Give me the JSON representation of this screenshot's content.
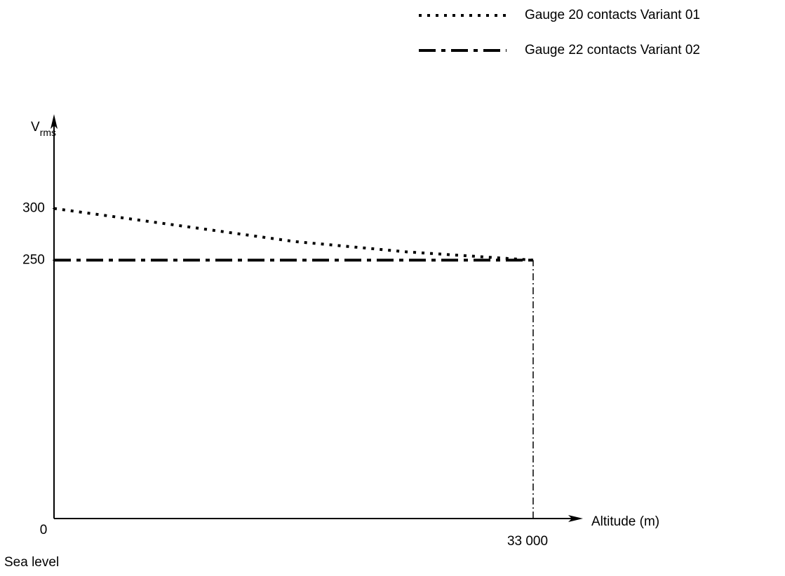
{
  "chart_data": {
    "type": "line",
    "y_label": "V",
    "y_label_sub": "rms",
    "x_label": "Altitude (m)",
    "annotation": "Sea level",
    "origin_label": "0",
    "x": [
      0,
      8840,
      16570,
      24300,
      33000
    ],
    "series": [
      {
        "name": "Gauge 20 contacts Variant 01",
        "color": "#000000",
        "style": "dotted",
        "values": [
          300,
          283,
          268,
          258,
          250
        ]
      },
      {
        "name": "Gauge 22 contacts Variant 02",
        "color": "#000000",
        "style": "dashdot",
        "values": [
          250,
          250,
          250,
          250,
          250
        ]
      }
    ],
    "xlim": [
      0,
      33000
    ],
    "xticks": [
      {
        "value": 33000,
        "label": "33 000"
      }
    ],
    "ylim": [
      0,
      300
    ],
    "yticks": [
      250,
      300
    ],
    "drop_line": true,
    "legend": "top-right"
  }
}
